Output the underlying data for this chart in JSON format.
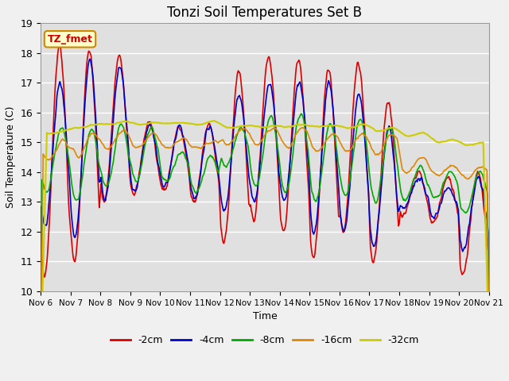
{
  "title": "Tonzi Soil Temperatures Set B",
  "xlabel": "Time",
  "ylabel": "Soil Temperature (C)",
  "ylim": [
    10.0,
    19.0
  ],
  "yticks": [
    10.0,
    11.0,
    12.0,
    13.0,
    14.0,
    15.0,
    16.0,
    17.0,
    18.0,
    19.0
  ],
  "xtick_labels": [
    "Nov 6",
    "Nov 7",
    "Nov 8",
    "Nov 9",
    "Nov 10",
    "Nov 11",
    "Nov 12",
    "Nov 13",
    "Nov 14",
    "Nov 15",
    "Nov 16",
    "Nov 17",
    "Nov 18",
    "Nov 19",
    "Nov 20",
    "Nov 21"
  ],
  "series": {
    "-2cm": {
      "color": "#dd0000",
      "lw": 1.2
    },
    "-4cm": {
      "color": "#0000cc",
      "lw": 1.2
    },
    "-8cm": {
      "color": "#00aa00",
      "lw": 1.2
    },
    "-16cm": {
      "color": "#dd8800",
      "lw": 1.2
    },
    "-32cm": {
      "color": "#cccc00",
      "lw": 1.5
    }
  },
  "label_box": {
    "text": "TZ_fmet",
    "facecolor": "#ffffcc",
    "edgecolor": "#cc8800",
    "textcolor": "#cc0000",
    "fontsize": 9,
    "fontweight": "bold"
  },
  "axes_facecolor": "#e0e0e0",
  "fig_facecolor": "#f0f0f0",
  "grid_color": "#ffffff",
  "title_fontsize": 12,
  "axis_label_fontsize": 9
}
